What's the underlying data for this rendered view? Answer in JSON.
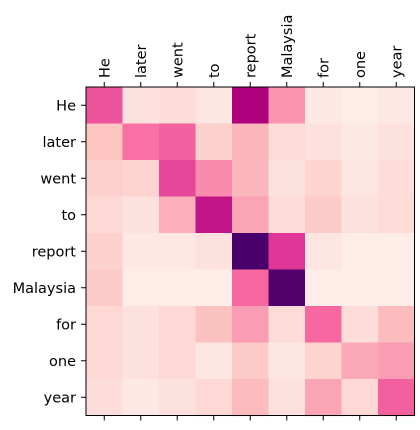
{
  "chart_data": {
    "type": "heatmap",
    "title": "",
    "colormap": "RdPu",
    "grid": false,
    "x_tick_position": "top",
    "x_tick_rotation": 90,
    "x_labels": [
      "He",
      "later",
      "went",
      "to",
      "report",
      "Malaysia",
      "for",
      "one",
      "year"
    ],
    "y_labels": [
      "He",
      "later",
      "went",
      "to",
      "report",
      "Malaysia",
      "for",
      "one",
      "year"
    ],
    "values": [
      [
        0.55,
        0.12,
        0.14,
        0.1,
        0.75,
        0.4,
        0.08,
        0.06,
        0.08
      ],
      [
        0.25,
        0.48,
        0.52,
        0.2,
        0.3,
        0.15,
        0.12,
        0.08,
        0.12
      ],
      [
        0.2,
        0.18,
        0.58,
        0.42,
        0.3,
        0.12,
        0.18,
        0.1,
        0.14
      ],
      [
        0.16,
        0.12,
        0.32,
        0.7,
        0.36,
        0.15,
        0.22,
        0.12,
        0.15
      ],
      [
        0.2,
        0.08,
        0.08,
        0.12,
        1.0,
        0.62,
        0.1,
        0.06,
        0.06
      ],
      [
        0.22,
        0.06,
        0.06,
        0.06,
        0.5,
        0.98,
        0.06,
        0.06,
        0.06
      ],
      [
        0.16,
        0.12,
        0.16,
        0.26,
        0.38,
        0.15,
        0.5,
        0.14,
        0.28
      ],
      [
        0.16,
        0.12,
        0.16,
        0.1,
        0.22,
        0.1,
        0.18,
        0.35,
        0.38
      ],
      [
        0.14,
        0.08,
        0.12,
        0.16,
        0.28,
        0.12,
        0.36,
        0.16,
        0.52
      ]
    ]
  }
}
